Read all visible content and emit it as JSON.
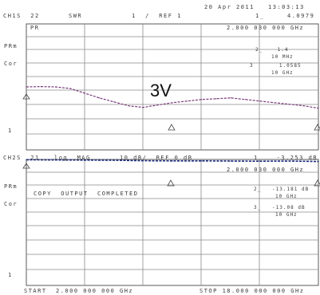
{
  "header": {
    "timestamp": "20 Apr 2011   13:03:13",
    "ch1_label": "CH1S  22",
    "ch1_format": "SWR",
    "ch1_scale": "1  /  REF 1",
    "ch1_marker": "1_     4.0979",
    "ch1_freq": "2.000 030 000 GHz",
    "ch2_label": "CH2S  21",
    "ch2_format": "log  MAG",
    "ch2_scale": "10 dB/  REF 0 dB",
    "ch2_marker": "1_   -3.253 dB",
    "ch2_freq": "2.000 030 000 GHz"
  },
  "ch1_side": {
    "pr": "PR",
    "prm": "PRm",
    "cor": "Cor",
    "one": "1"
  },
  "ch1_markers": [
    {
      "id": "m2",
      "label": "2_    1.4",
      "sub": "10 MHz"
    },
    {
      "id": "m3",
      "label": "3       1.0585",
      "sub": "10 GHz"
    }
  ],
  "annotation": {
    "voltage": "3V"
  },
  "ch2_side": {
    "prm": "PRm",
    "cor": "Cor",
    "one": "1"
  },
  "ch2_markers": [
    {
      "id": "m2",
      "label": "2_   -13.181 dB",
      "sub": "10 GHz"
    },
    {
      "id": "m3",
      "label": "3_   -13.08 dB",
      "sub": "10 GHz"
    }
  ],
  "status": {
    "copy_message": "COPY  OUTPUT  COMPLETED"
  },
  "footer": {
    "start": "START  2.000 000 000 GHz",
    "stop": "STOP 18.000 000 000 GHz"
  },
  "chart_data": [
    {
      "type": "line",
      "title": "CH1 S22 SWR",
      "x": [
        0,
        0.5,
        1.0,
        1.5,
        2.0,
        2.5,
        3.0,
        3.5,
        4.0,
        4.5,
        5.0,
        5.5,
        6.0,
        6.5,
        7.0,
        7.5,
        8.0,
        8.5,
        9.0,
        9.5,
        10.0
      ],
      "series": [
        {
          "values": [
            4.0,
            4.02,
            4.0,
            3.9,
            3.6,
            3.3,
            3.05,
            2.8,
            2.7,
            2.85,
            3.0,
            3.1,
            3.2,
            3.25,
            3.3,
            3.2,
            3.1,
            3.0,
            2.9,
            2.8,
            2.65
          ]
        }
      ],
      "ylim": [
        0,
        8
      ],
      "grid": true,
      "color": "#7a3a7a"
    },
    {
      "type": "line",
      "title": "CH2 S21 log MAG",
      "x": [
        0,
        1,
        2,
        3,
        4,
        5,
        6,
        7,
        8,
        9,
        10
      ],
      "series": [
        {
          "values": [
            -0.2,
            -0.3,
            -0.4,
            -0.5,
            -0.8,
            -0.9,
            -0.9,
            -1.0,
            -1.1,
            -1.0,
            -1.3
          ]
        }
      ],
      "ylim": [
        -80,
        0
      ],
      "grid": true,
      "color": "#1a2a7a"
    }
  ]
}
